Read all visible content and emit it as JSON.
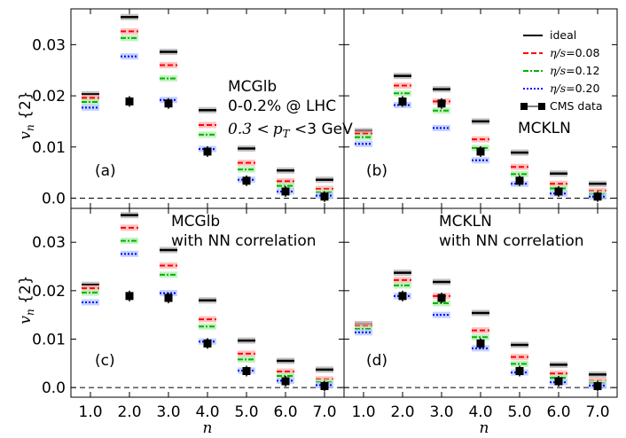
{
  "chart_data": {
    "type": "scatter",
    "title": "",
    "xlabel": "n",
    "ylabel": "v_n {2}",
    "x": [
      1,
      2,
      3,
      4,
      5,
      6,
      7
    ],
    "x_tick_labels": [
      "1.0",
      "2.0",
      "3.0",
      "4.0",
      "5.0",
      "6.0",
      "7.0"
    ],
    "xlim": [
      0.5,
      7.5
    ],
    "ylim": [
      -0.002,
      0.037
    ],
    "y_ticks": [
      0.0,
      0.01,
      0.02,
      0.03
    ],
    "y_tick_labels": [
      "0.0",
      "0.01",
      "0.02",
      "0.03"
    ],
    "zero_line": "dashed",
    "legend": {
      "placement": "top-right of panel (b)",
      "entries": [
        {
          "label": "ideal",
          "color": "#000000",
          "style": "solid"
        },
        {
          "label_math": "η/s",
          "label_value": "=0.08",
          "color": "#ff0000",
          "style": "dashed"
        },
        {
          "label_math": "η/s",
          "label_value": "=0.12",
          "color": "#00b400",
          "style": "dashdot"
        },
        {
          "label_math": "η/s",
          "label_value": "=0.20",
          "color": "#0000ff",
          "style": "dotted"
        },
        {
          "label": "CMS data",
          "color": "#000000",
          "style": "square marker"
        }
      ]
    },
    "cms_data": [
      0.0189,
      0.0185,
      0.0091,
      0.0034,
      0.0013,
      0.0003
    ],
    "cms_data_n": [
      2,
      3,
      4,
      5,
      6,
      7
    ],
    "panels": [
      {
        "tag": "(a)",
        "annotations": [
          "MCGlb",
          "0-0.2% @ LHC"
        ],
        "kinematics": {
          "prefix": "0.3",
          "variable": "p",
          "subscript": "T",
          "suffix": "3 GeV"
        },
        "series": [
          {
            "name": "ideal",
            "values": [
              0.0203,
              0.0354,
              0.0286,
              0.0172,
              0.0097,
              0.0054,
              0.0036
            ]
          },
          {
            "name": "η/s=0.08",
            "values": [
              0.0196,
              0.0326,
              0.026,
              0.0143,
              0.0069,
              0.0033,
              0.0018
            ]
          },
          {
            "name": "η/s=0.12",
            "values": [
              0.0188,
              0.0313,
              0.0234,
              0.0124,
              0.0056,
              0.0024,
              0.0011
            ]
          },
          {
            "name": "η/s=0.20",
            "values": [
              0.0177,
              0.0277,
              0.0192,
              0.0096,
              0.0036,
              0.0013,
              0.0005
            ]
          }
        ]
      },
      {
        "tag": "(b)",
        "annotations": [
          "MCKLN"
        ],
        "series": [
          {
            "name": "ideal",
            "values": [
              0.0131,
              0.0239,
              0.0213,
              0.015,
              0.0089,
              0.0048,
              0.0028
            ]
          },
          {
            "name": "η/s=0.08",
            "values": [
              0.0126,
              0.022,
              0.0189,
              0.0115,
              0.0061,
              0.0028,
              0.0014
            ]
          },
          {
            "name": "η/s=0.12",
            "values": [
              0.0119,
              0.0205,
              0.0171,
              0.0098,
              0.0047,
              0.0019,
              0.0008
            ]
          },
          {
            "name": "η/s=0.20",
            "values": [
              0.0106,
              0.0182,
              0.0137,
              0.0074,
              0.0028,
              0.0009,
              0.0003
            ]
          }
        ]
      },
      {
        "tag": "(c)",
        "annotations": [
          "MCGlb",
          "with NN correlation"
        ],
        "series": [
          {
            "name": "ideal",
            "values": [
              0.0212,
              0.0356,
              0.0284,
              0.018,
              0.0097,
              0.0055,
              0.0037
            ]
          },
          {
            "name": "η/s=0.08",
            "values": [
              0.0205,
              0.033,
              0.0252,
              0.0141,
              0.007,
              0.0033,
              0.0017
            ]
          },
          {
            "name": "η/s=0.12",
            "values": [
              0.0196,
              0.0303,
              0.0233,
              0.0126,
              0.0058,
              0.0024,
              0.0011
            ]
          },
          {
            "name": "η/s=0.20",
            "values": [
              0.0176,
              0.0276,
              0.0195,
              0.0095,
              0.0035,
              0.0014,
              0.0005
            ]
          }
        ]
      },
      {
        "tag": "(d)",
        "annotations": [
          "MCKLN",
          "with NN correlation"
        ],
        "series": [
          {
            "name": "ideal",
            "values": [
              0.0131,
              0.0237,
              0.0218,
              0.0154,
              0.0088,
              0.0047,
              0.0027
            ]
          },
          {
            "name": "η/s=0.08",
            "values": [
              0.0127,
              0.0222,
              0.0189,
              0.0118,
              0.0063,
              0.0029,
              0.0014
            ]
          },
          {
            "name": "η/s=0.12",
            "values": [
              0.0121,
              0.0211,
              0.0174,
              0.0104,
              0.0049,
              0.002,
              0.0009
            ]
          },
          {
            "name": "η/s=0.20",
            "values": [
              0.0114,
              0.0189,
              0.015,
              0.0081,
              0.0031,
              0.0011,
              0.0004
            ]
          }
        ]
      }
    ]
  }
}
